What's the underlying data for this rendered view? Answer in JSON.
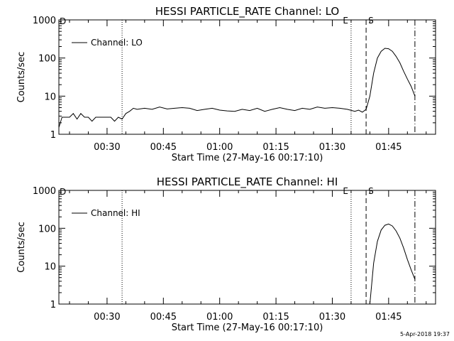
{
  "timestamp": "5-Apr-2018 19:37",
  "colors": {
    "background": "#ffffff",
    "foreground": "#000000"
  },
  "chart_data": [
    {
      "type": "line",
      "title": "HESSI PARTICLE_RATE Channel: LO",
      "xlabel": "Start Time (27-May-16 00:17:10)",
      "ylabel": "Counts/sec",
      "y_scale": "log",
      "ylim": [
        1,
        1000
      ],
      "xlim": [
        "00:17:10",
        "01:57:30"
      ],
      "x_ticks": [
        "00:30",
        "00:45",
        "01:00",
        "01:15",
        "01:30",
        "01:45"
      ],
      "y_ticks": [
        "1",
        "10",
        "100",
        "1000"
      ],
      "legend": {
        "position": "top-left",
        "entries": [
          "Channel: LO"
        ]
      },
      "grid": false,
      "markers": [
        {
          "label": "",
          "time": "00:34:00",
          "style": "dotted"
        },
        {
          "label": "E",
          "time": "01:35:00",
          "style": "dotted"
        },
        {
          "label": "S",
          "time": "01:39:00",
          "style": "dashed"
        },
        {
          "label": "",
          "time": "01:52:00",
          "style": "dash-dot"
        }
      ],
      "corner_label": "D",
      "series": [
        {
          "name": "Channel: LO",
          "x": [
            "00:17:10",
            "00:18:00",
            "00:19:00",
            "00:20:00",
            "00:21:00",
            "00:22:00",
            "00:23:00",
            "00:24:00",
            "00:25:00",
            "00:26:00",
            "00:27:00",
            "00:28:00",
            "00:29:00",
            "00:30:00",
            "00:31:00",
            "00:32:00",
            "00:33:00",
            "00:34:00",
            "00:35:00",
            "00:36:00",
            "00:37:00",
            "00:38:00",
            "00:40:00",
            "00:42:00",
            "00:44:00",
            "00:46:00",
            "00:48:00",
            "00:50:00",
            "00:52:00",
            "00:54:00",
            "00:56:00",
            "00:58:00",
            "01:00:00",
            "01:02:00",
            "01:04:00",
            "01:06:00",
            "01:08:00",
            "01:10:00",
            "01:12:00",
            "01:14:00",
            "01:16:00",
            "01:18:00",
            "01:20:00",
            "01:22:00",
            "01:24:00",
            "01:26:00",
            "01:28:00",
            "01:30:00",
            "01:32:00",
            "01:34:00",
            "01:36:00",
            "01:37:00",
            "01:38:00",
            "01:39:00",
            "01:40:00",
            "01:41:00",
            "01:42:00",
            "01:43:00",
            "01:44:00",
            "01:45:00",
            "01:46:00",
            "01:47:00",
            "01:48:00",
            "01:49:00",
            "01:50:00",
            "01:51:00",
            "01:52:00"
          ],
          "y": [
            1.5,
            2.8,
            2.8,
            2.8,
            3.5,
            2.5,
            3.5,
            2.8,
            2.8,
            2.2,
            2.8,
            2.8,
            2.8,
            2.8,
            2.8,
            2.2,
            2.8,
            2.5,
            3.5,
            4.0,
            4.8,
            4.5,
            4.8,
            4.5,
            5.2,
            4.6,
            4.8,
            5.0,
            4.8,
            4.2,
            4.5,
            4.8,
            4.3,
            4.1,
            4.0,
            4.5,
            4.2,
            4.8,
            4.0,
            4.5,
            5.0,
            4.5,
            4.2,
            4.8,
            4.5,
            5.2,
            4.8,
            5.0,
            4.8,
            4.5,
            4.0,
            4.3,
            3.8,
            4.5,
            10,
            40,
            100,
            150,
            180,
            175,
            150,
            110,
            75,
            45,
            28,
            18,
            10
          ]
        }
      ]
    },
    {
      "type": "line",
      "title": "HESSI PARTICLE_RATE Channel: HI",
      "xlabel": "Start Time (27-May-16 00:17:10)",
      "ylabel": "Counts/sec",
      "y_scale": "log",
      "ylim": [
        1,
        1000
      ],
      "xlim": [
        "00:17:10",
        "01:57:30"
      ],
      "x_ticks": [
        "00:30",
        "00:45",
        "01:00",
        "01:15",
        "01:30",
        "01:45"
      ],
      "y_ticks": [
        "1",
        "10",
        "100",
        "1000"
      ],
      "legend": {
        "position": "top-left",
        "entries": [
          "Channel: HI"
        ]
      },
      "grid": false,
      "markers": [
        {
          "label": "",
          "time": "00:34:00",
          "style": "dotted"
        },
        {
          "label": "E",
          "time": "01:35:00",
          "style": "dotted"
        },
        {
          "label": "S",
          "time": "01:39:00",
          "style": "dashed"
        },
        {
          "label": "",
          "time": "01:52:00",
          "style": "dash-dot"
        }
      ],
      "corner_label": "D",
      "series": [
        {
          "name": "Channel: HI",
          "x": [
            "01:40:00",
            "01:41:00",
            "01:42:00",
            "01:43:00",
            "01:44:00",
            "01:45:00",
            "01:46:00",
            "01:47:00",
            "01:48:00",
            "01:49:00",
            "01:50:00",
            "01:51:00",
            "01:52:00"
          ],
          "y": [
            1.0,
            12,
            45,
            90,
            120,
            130,
            115,
            85,
            55,
            30,
            15,
            8,
            4.5
          ]
        }
      ]
    }
  ]
}
